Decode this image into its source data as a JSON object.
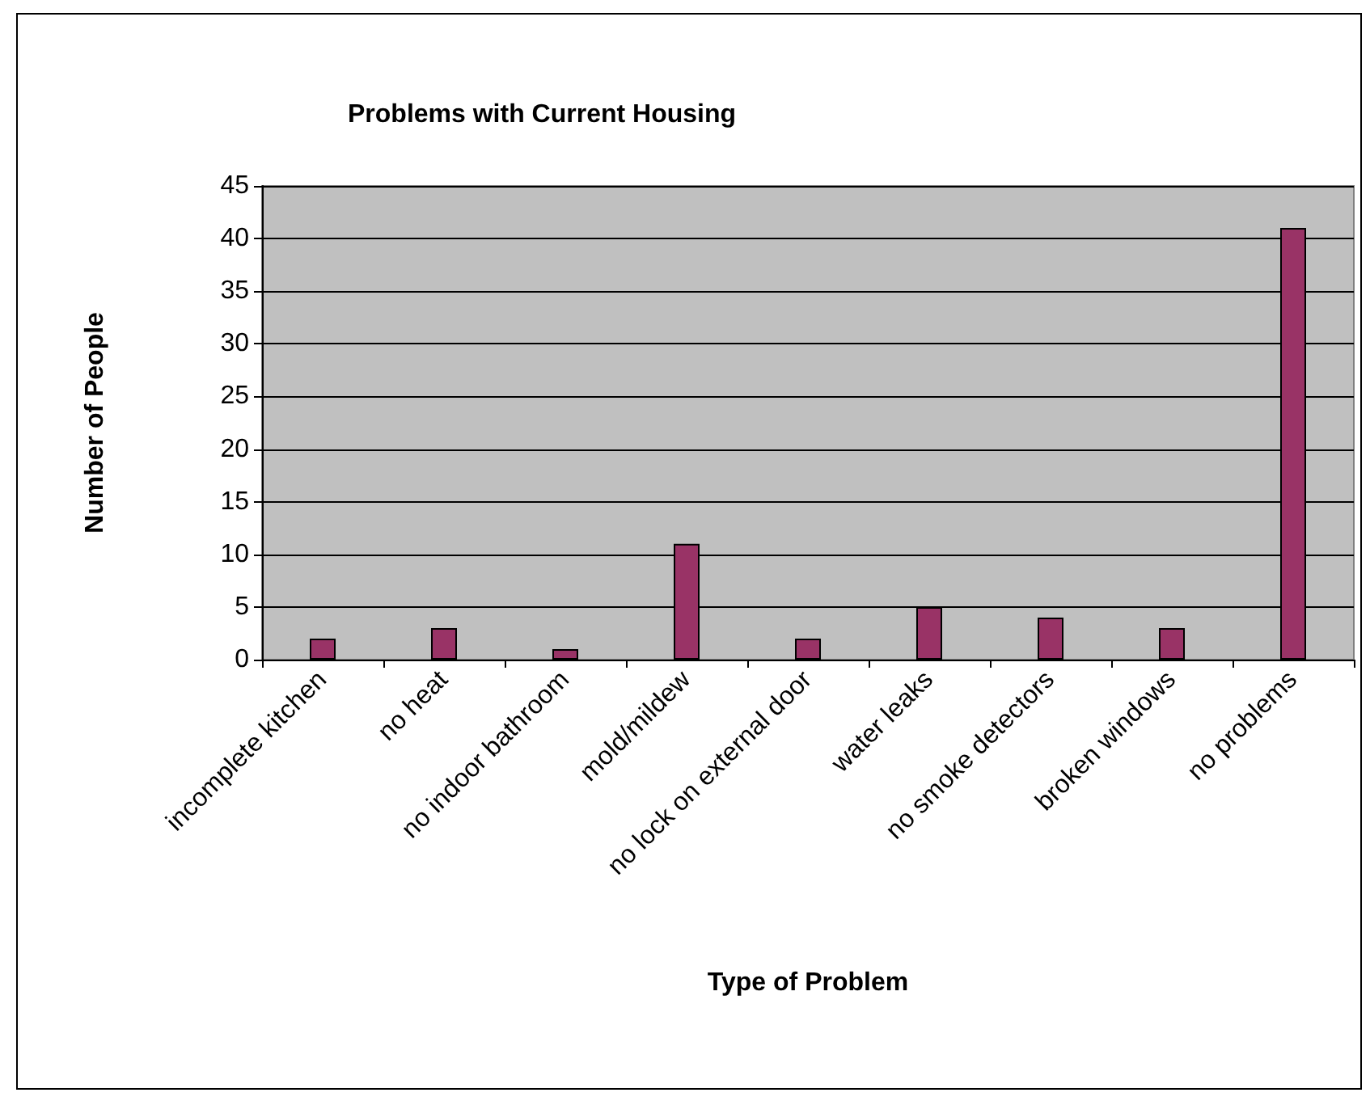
{
  "chart_data": {
    "type": "bar",
    "title": "Problems with Current Housing",
    "xlabel": "Type of Problem",
    "ylabel": "Number of People",
    "categories": [
      "incomplete kitchen",
      "no heat",
      "no indoor bathroom",
      "mold/mildew",
      "no lock on external door",
      "water leaks",
      "no smoke detectors",
      "broken windows",
      "no problems"
    ],
    "values": [
      2,
      3,
      1,
      11,
      2,
      5,
      4,
      3,
      41
    ],
    "color": "#993366",
    "ylim": [
      0,
      45
    ],
    "yticks": [
      0,
      5,
      10,
      15,
      20,
      25,
      30,
      35,
      40,
      45
    ],
    "grid": "y"
  }
}
